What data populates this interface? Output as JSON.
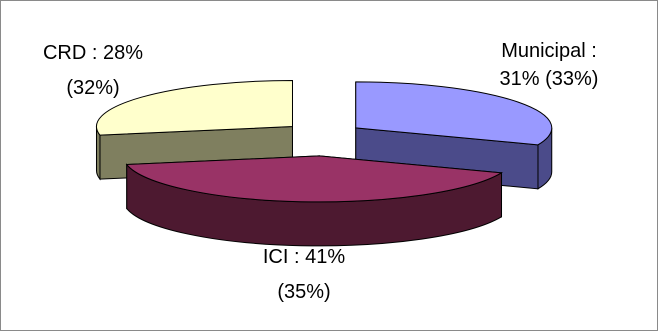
{
  "chart_data": {
    "type": "pie",
    "style": "3d-exploded",
    "slices": [
      {
        "name": "Municipal",
        "value": 31,
        "prior_value": 33,
        "color": "#9999FF",
        "side_color": "#4B4B8A",
        "label_line1": "Municipal :",
        "label_line2": "31% (33%)"
      },
      {
        "name": "ICI",
        "value": 41,
        "prior_value": 35,
        "color": "#993366",
        "side_color": "#4D1930",
        "label_line1": "ICI : 41%",
        "label_line2": "(35%)"
      },
      {
        "name": "CRD",
        "value": 28,
        "prior_value": 32,
        "color": "#FFFFCC",
        "side_color": "#7F7F5F",
        "label_line1": "CRD : 28%",
        "label_line2": "(32%)"
      }
    ],
    "legend": "none",
    "title": ""
  }
}
